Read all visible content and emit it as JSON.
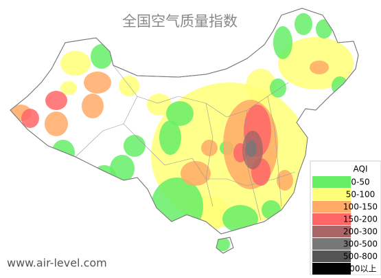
{
  "title": "全国空气质量指数",
  "watermark": "www.air-level.com",
  "legend": {
    "title": "AQI",
    "items": [
      {
        "label": "0-50",
        "color": "#66ee66"
      },
      {
        "label": "50-100",
        "color": "#ffff77"
      },
      {
        "label": "100-150",
        "color": "#ffaa66"
      },
      {
        "label": "150-200",
        "color": "#ff6666"
      },
      {
        "label": "200-300",
        "color": "#aa6666"
      },
      {
        "label": "300-500",
        "color": "#777777"
      },
      {
        "label": "500-800",
        "color": "#555555"
      },
      {
        "label": "800以上",
        "color": "#000000"
      }
    ]
  }
}
